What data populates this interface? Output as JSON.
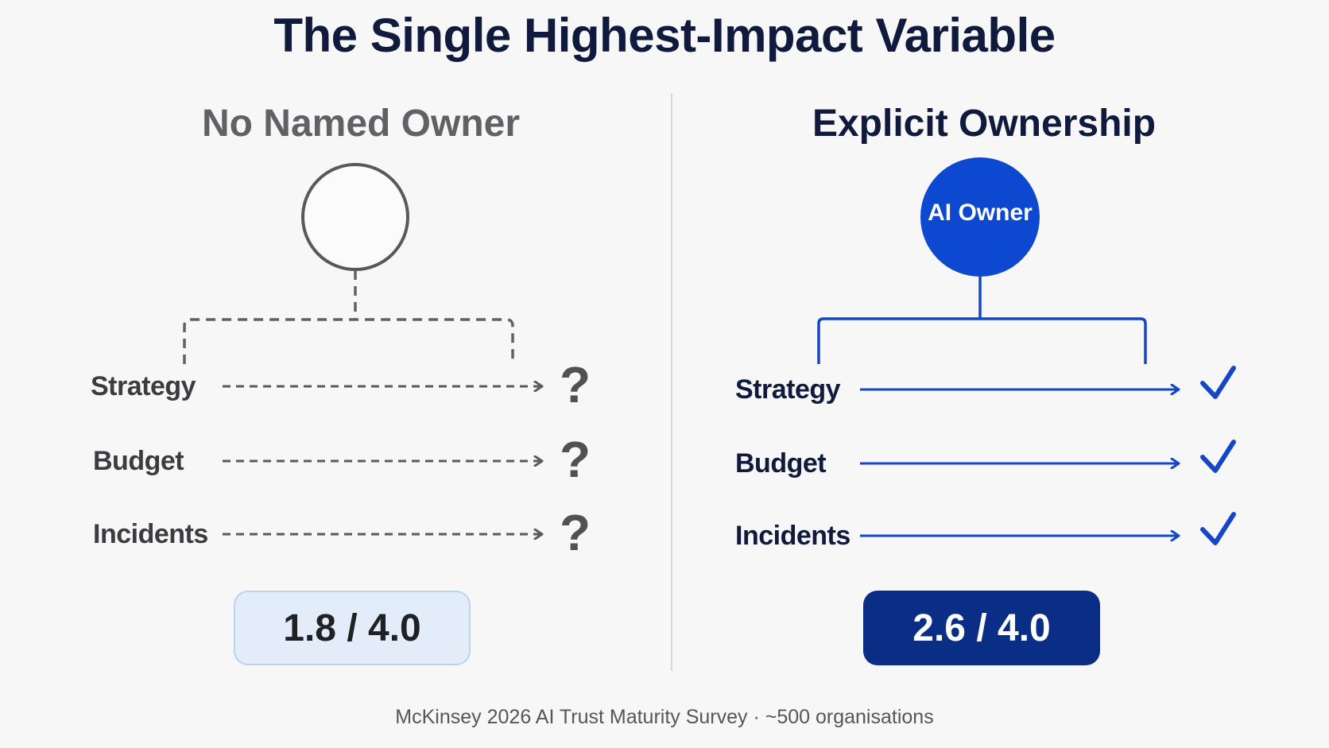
{
  "title": "The Single Highest-Impact Variable",
  "left": {
    "heading": "No Named Owner",
    "rows": [
      "Strategy",
      "Budget",
      "Incidents"
    ],
    "marker": "?",
    "score": "1.8 / 4.0"
  },
  "right": {
    "heading": "Explicit Ownership",
    "owner_label": "AI Owner",
    "rows": [
      "Strategy",
      "Budget",
      "Incidents"
    ],
    "score": "2.6 / 4.0"
  },
  "footer": "McKinsey 2026 AI Trust Maturity Survey · ~500 organisations",
  "colors": {
    "title": "#0f1a3c",
    "muted": "#606164",
    "accent_blue": "#0d48d0",
    "score_dark": "#0a2d86",
    "score_light": "#e2edf9"
  }
}
